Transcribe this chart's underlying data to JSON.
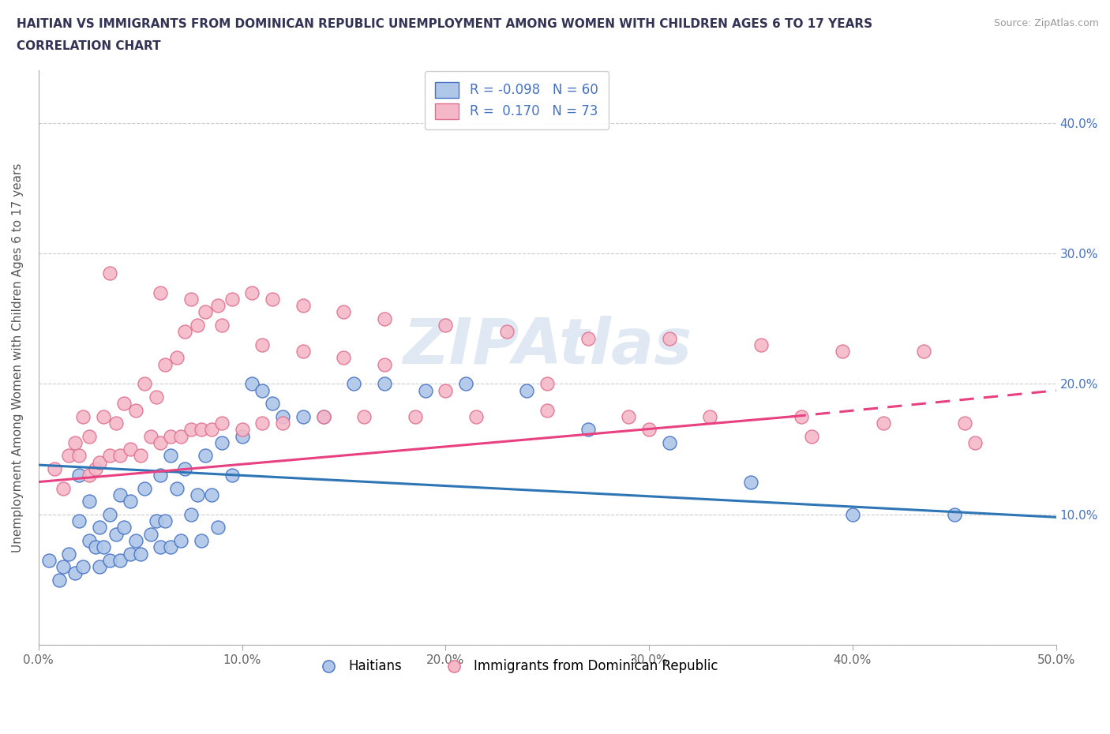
{
  "title_line1": "HAITIAN VS IMMIGRANTS FROM DOMINICAN REPUBLIC UNEMPLOYMENT AMONG WOMEN WITH CHILDREN AGES 6 TO 17 YEARS",
  "title_line2": "CORRELATION CHART",
  "source": "Source: ZipAtlas.com",
  "ylabel": "Unemployment Among Women with Children Ages 6 to 17 years",
  "xlim": [
    0.0,
    0.5
  ],
  "ylim": [
    0.0,
    0.44
  ],
  "xticks": [
    0.0,
    0.1,
    0.2,
    0.3,
    0.4,
    0.5
  ],
  "yticks": [
    0.0,
    0.1,
    0.2,
    0.3,
    0.4
  ],
  "xticklabels": [
    "0.0%",
    "10.0%",
    "20.0%",
    "30.0%",
    "40.0%",
    "50.0%"
  ],
  "ylabels_left": [
    "",
    "",
    "",
    "",
    ""
  ],
  "ylabels_right": [
    "",
    "10.0%",
    "20.0%",
    "30.0%",
    "40.0%"
  ],
  "haitian_color": "#aec6e8",
  "haitian_edge_color": "#4472c4",
  "dominican_color": "#f4b8c8",
  "dominican_edge_color": "#e07090",
  "trend_haitian_color": "#2e75b6",
  "trend_dominican_color": "#e84080",
  "trend_dominican_dash": true,
  "R_haitian": -0.098,
  "N_haitian": 60,
  "R_dominican": 0.17,
  "N_dominican": 73,
  "legend_label_haitian": "Haitians",
  "legend_label_dominican": "Immigrants from Dominican Republic",
  "watermark": "ZIPAtlas",
  "haitian_x": [
    0.005,
    0.01,
    0.012,
    0.015,
    0.018,
    0.02,
    0.02,
    0.022,
    0.025,
    0.025,
    0.028,
    0.03,
    0.03,
    0.032,
    0.035,
    0.035,
    0.038,
    0.04,
    0.04,
    0.042,
    0.045,
    0.045,
    0.048,
    0.05,
    0.052,
    0.055,
    0.058,
    0.06,
    0.06,
    0.062,
    0.065,
    0.065,
    0.068,
    0.07,
    0.072,
    0.075,
    0.078,
    0.08,
    0.082,
    0.085,
    0.088,
    0.09,
    0.095,
    0.1,
    0.105,
    0.11,
    0.115,
    0.12,
    0.13,
    0.14,
    0.155,
    0.17,
    0.19,
    0.21,
    0.24,
    0.27,
    0.31,
    0.35,
    0.4,
    0.45
  ],
  "haitian_y": [
    0.065,
    0.05,
    0.06,
    0.07,
    0.055,
    0.095,
    0.13,
    0.06,
    0.08,
    0.11,
    0.075,
    0.06,
    0.09,
    0.075,
    0.065,
    0.1,
    0.085,
    0.065,
    0.115,
    0.09,
    0.07,
    0.11,
    0.08,
    0.07,
    0.12,
    0.085,
    0.095,
    0.075,
    0.13,
    0.095,
    0.075,
    0.145,
    0.12,
    0.08,
    0.135,
    0.1,
    0.115,
    0.08,
    0.145,
    0.115,
    0.09,
    0.155,
    0.13,
    0.16,
    0.2,
    0.195,
    0.185,
    0.175,
    0.175,
    0.175,
    0.2,
    0.2,
    0.195,
    0.2,
    0.195,
    0.165,
    0.155,
    0.125,
    0.1,
    0.1
  ],
  "dominican_x": [
    0.008,
    0.012,
    0.015,
    0.018,
    0.02,
    0.022,
    0.025,
    0.025,
    0.028,
    0.03,
    0.032,
    0.035,
    0.038,
    0.04,
    0.042,
    0.045,
    0.048,
    0.05,
    0.052,
    0.055,
    0.058,
    0.06,
    0.062,
    0.065,
    0.068,
    0.07,
    0.072,
    0.075,
    0.078,
    0.08,
    0.082,
    0.085,
    0.088,
    0.09,
    0.095,
    0.1,
    0.105,
    0.11,
    0.115,
    0.12,
    0.13,
    0.14,
    0.15,
    0.16,
    0.17,
    0.185,
    0.2,
    0.215,
    0.23,
    0.25,
    0.27,
    0.29,
    0.31,
    0.33,
    0.355,
    0.375,
    0.395,
    0.415,
    0.435,
    0.455,
    0.035,
    0.06,
    0.075,
    0.09,
    0.11,
    0.13,
    0.15,
    0.17,
    0.2,
    0.25,
    0.3,
    0.38,
    0.46
  ],
  "dominican_y": [
    0.135,
    0.12,
    0.145,
    0.155,
    0.145,
    0.175,
    0.13,
    0.16,
    0.135,
    0.14,
    0.175,
    0.145,
    0.17,
    0.145,
    0.185,
    0.15,
    0.18,
    0.145,
    0.2,
    0.16,
    0.19,
    0.155,
    0.215,
    0.16,
    0.22,
    0.16,
    0.24,
    0.165,
    0.245,
    0.165,
    0.255,
    0.165,
    0.26,
    0.17,
    0.265,
    0.165,
    0.27,
    0.17,
    0.265,
    0.17,
    0.26,
    0.175,
    0.255,
    0.175,
    0.25,
    0.175,
    0.245,
    0.175,
    0.24,
    0.18,
    0.235,
    0.175,
    0.235,
    0.175,
    0.23,
    0.175,
    0.225,
    0.17,
    0.225,
    0.17,
    0.285,
    0.27,
    0.265,
    0.245,
    0.23,
    0.225,
    0.22,
    0.215,
    0.195,
    0.2,
    0.165,
    0.16,
    0.155
  ]
}
